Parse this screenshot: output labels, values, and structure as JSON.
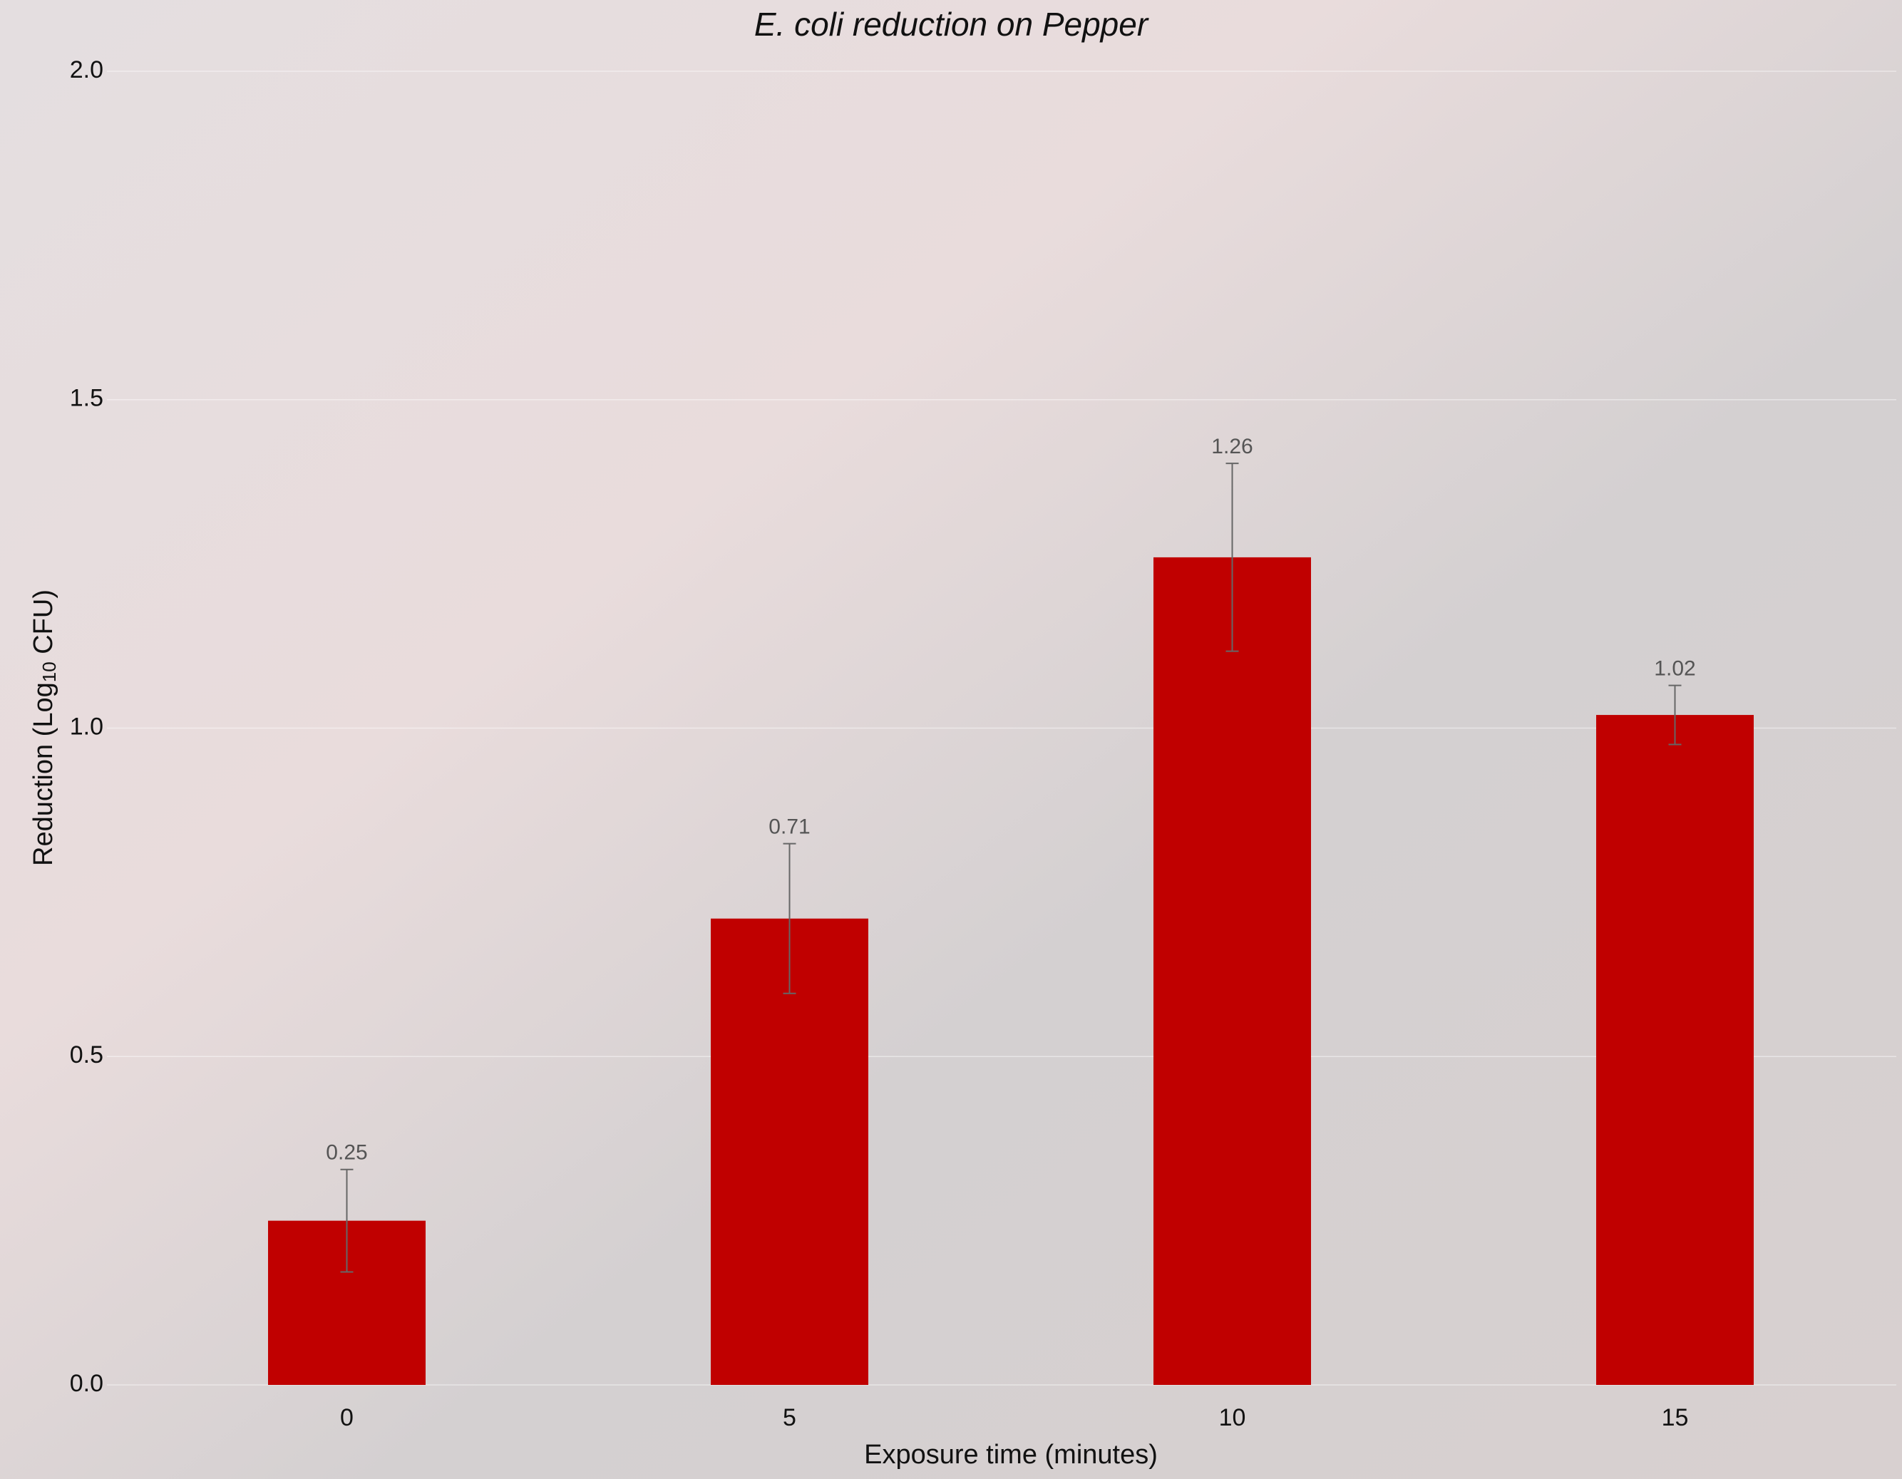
{
  "chart_data": {
    "type": "bar",
    "title": "E. coli reduction on Pepper",
    "x_label": "Exposure time (minutes)",
    "y_label": {
      "text": "Reduction (Log",
      "sub": "10",
      "rest": " CFU)"
    },
    "categories": [
      "0",
      "5",
      "10",
      "15"
    ],
    "values": [
      0.25,
      0.71,
      1.26,
      1.02
    ],
    "errors": [
      0.078,
      0.114,
      0.143,
      0.045
    ],
    "color": "#c00000",
    "error_color": "#666666",
    "ylim": [
      0,
      2
    ],
    "yticks": [
      {
        "value": 0,
        "label": "0.0"
      },
      {
        "value": 0.5,
        "label": "0.5"
      },
      {
        "value": 1,
        "label": "1.0"
      },
      {
        "value": 1.5,
        "label": "1.5"
      },
      {
        "value": 2,
        "label": "2.0"
      }
    ],
    "grid": true
  }
}
